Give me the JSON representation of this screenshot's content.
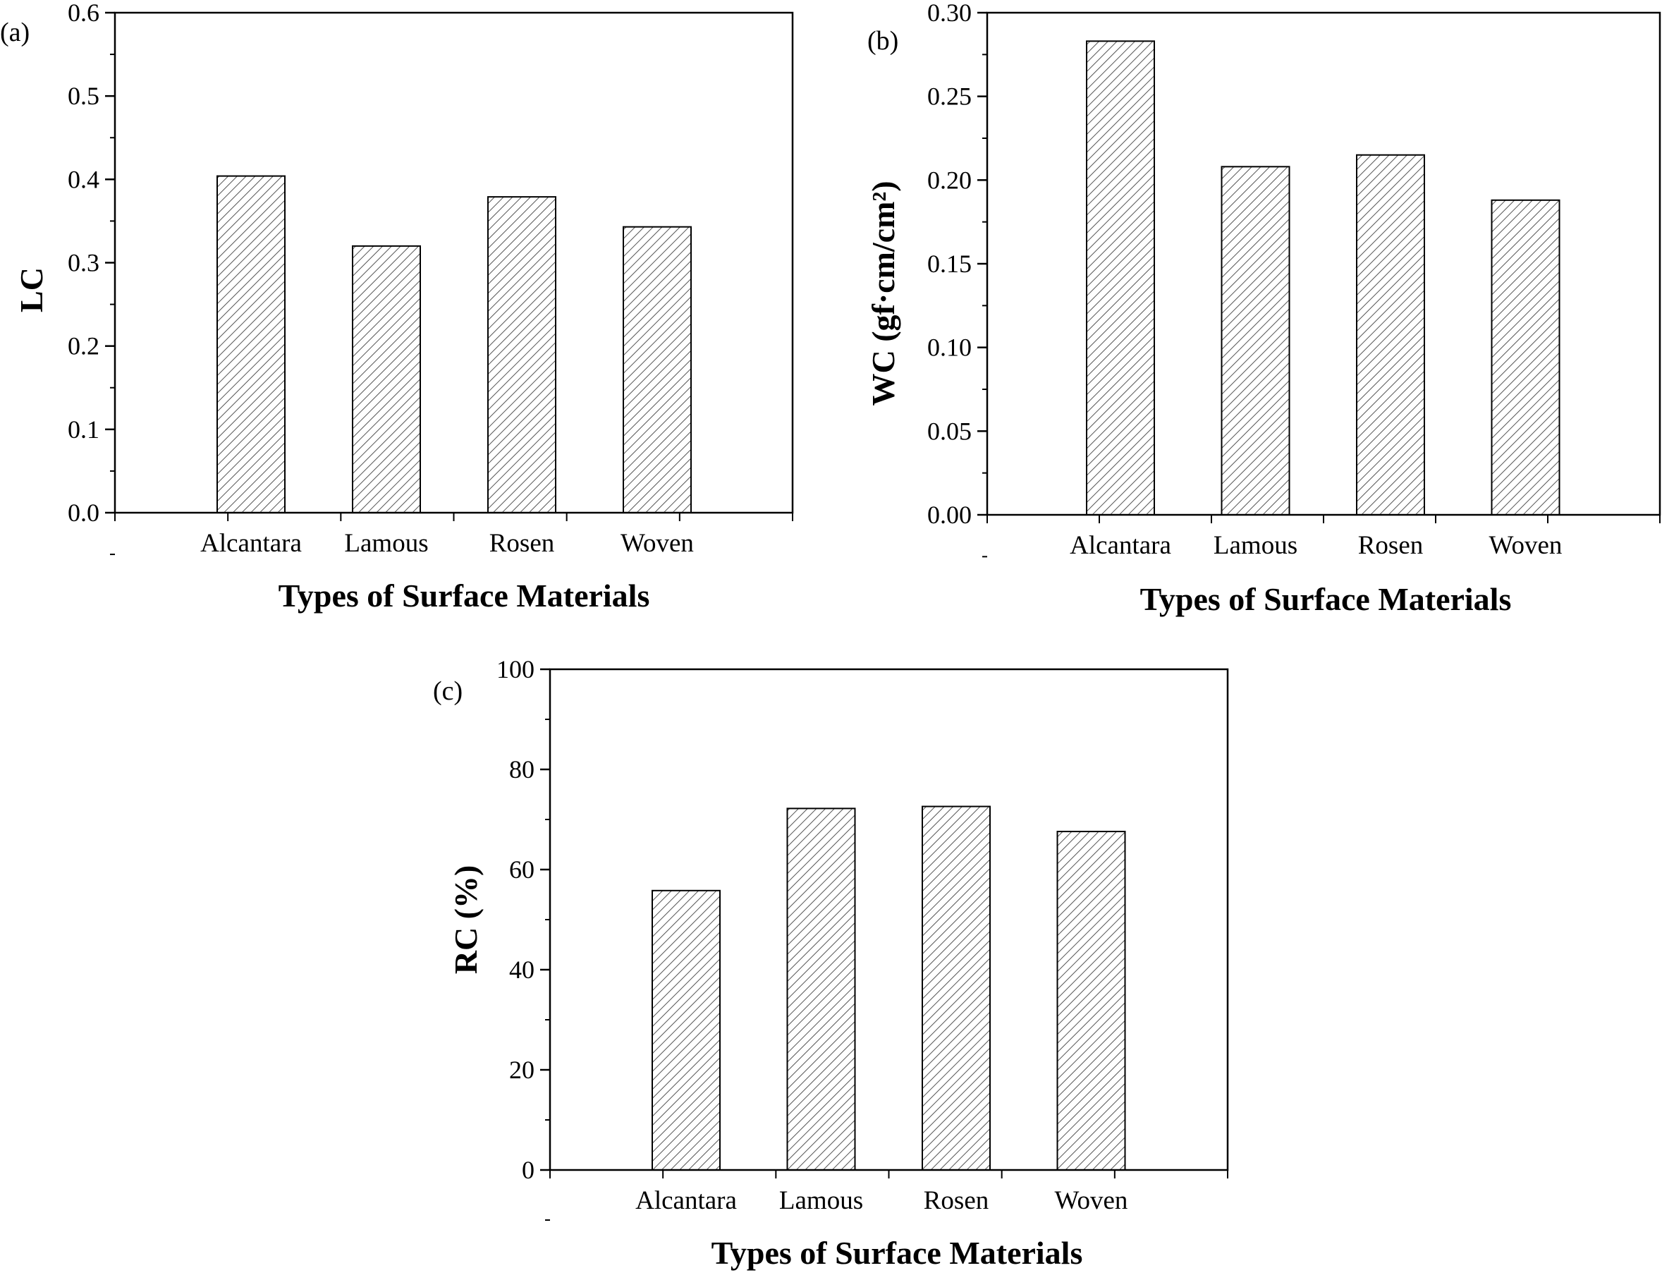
{
  "chart_data": [
    {
      "type": "bar",
      "panel_label": "(a)",
      "categories": [
        "Alcantara",
        "Lamous",
        "Rosen",
        "Woven"
      ],
      "values": [
        0.404,
        0.32,
        0.379,
        0.343
      ],
      "xlabel": "Types of Surface Materials",
      "ylabel": "LC",
      "ylim": [
        0,
        0.6
      ],
      "yticks": [
        "0.0",
        "0.1",
        "0.2",
        "0.3",
        "0.4",
        "0.5",
        "0.6"
      ],
      "bar_fill": "hatched",
      "grid": false
    },
    {
      "type": "bar",
      "panel_label": "(b)",
      "categories": [
        "Alcantara",
        "Lamous",
        "Rosen",
        "Woven"
      ],
      "values": [
        0.283,
        0.208,
        0.215,
        0.188
      ],
      "xlabel": "Types of Surface Materials",
      "ylabel": "WC  (gf·cm/cm²)",
      "ylim": [
        0,
        0.3
      ],
      "yticks": [
        "0.00",
        "0.05",
        "0.10",
        "0.15",
        "0.20",
        "0.25",
        "0.30"
      ],
      "bar_fill": "hatched",
      "grid": false
    },
    {
      "type": "bar",
      "panel_label": "(c)",
      "categories": [
        "Alcantara",
        "Lamous",
        "Rosen",
        "Woven"
      ],
      "values": [
        55.8,
        72.2,
        72.6,
        67.6
      ],
      "xlabel": "Types of Surface Materials",
      "ylabel": "RC  (%)",
      "ylim": [
        0,
        100
      ],
      "yticks": [
        "0",
        "20",
        "40",
        "60",
        "80",
        "100"
      ],
      "bar_fill": "hatched",
      "grid": false
    }
  ],
  "colors": {
    "axis": "#000000",
    "bar_outline": "#000000",
    "hatch": "#555555",
    "background": "#ffffff"
  }
}
